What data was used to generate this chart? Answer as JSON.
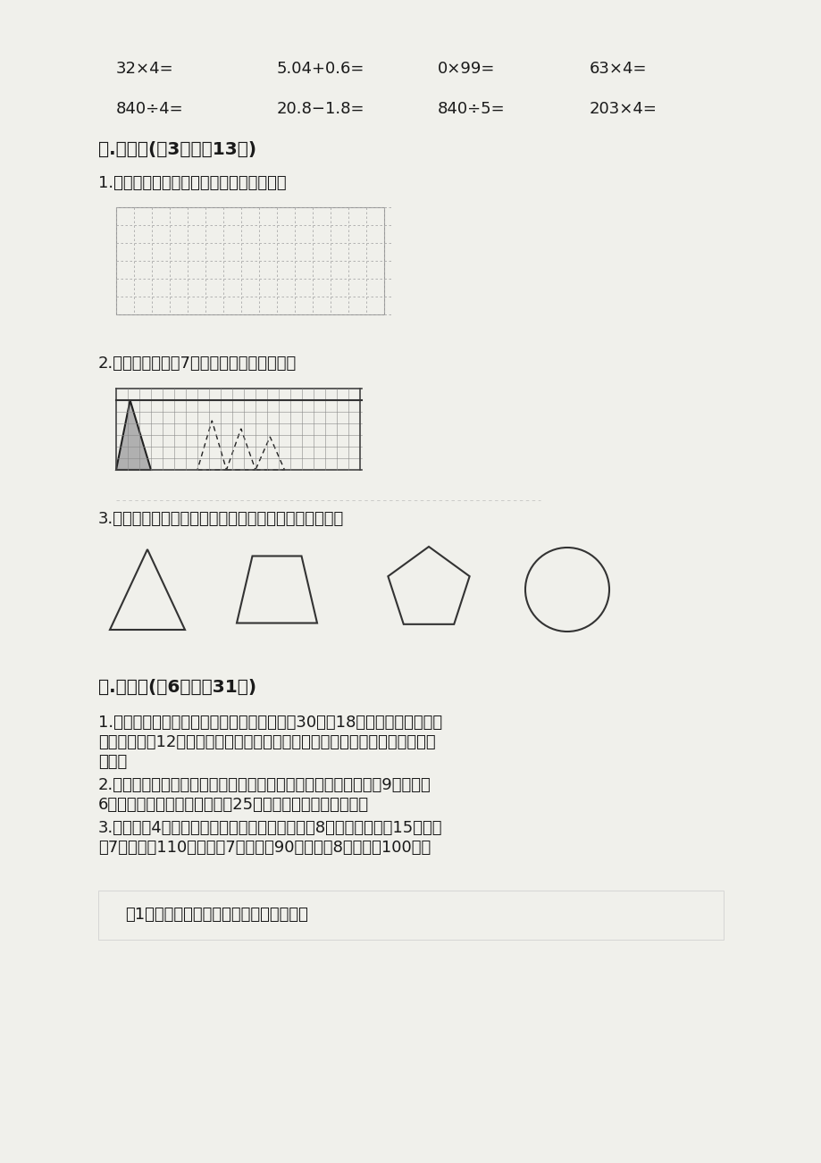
{
  "bg_color": "#f0f0eb",
  "text_color": "#1a1a1a",
  "page_width": 9.2,
  "page_height": 13.02,
  "row1_equations": [
    "32×4=",
    "5.04+0.6=",
    "0×99=",
    "63×4="
  ],
  "row2_equations": [
    "840÷4=",
    "20.8−1.8=",
    "840÷5=",
    "203×4="
  ],
  "section5_title": "五.作图题(共3题，共13分)",
  "q1_text": "1.画一个等腼三角形，其中一个角是锤角。",
  "q2_text": "2.把图形向右平移7格后得的图形涂上颜色。",
  "q3_text": "3.图中的图形都是轴对称图形，请你画出它们的对称轴。",
  "section6_title": "六.解答题(共6题，共31分)",
  "prob1_line1": "1.张星从图书馆借了一本小说书，如果每天看30页，18天可以看完；但图书",
  "prob1_line2": "馆规定时限是12天，要在规定的时间内把这本小说书看完，他平均每天要看多",
  "prob1_line3": "少页？",
  "prob2_line1": "2.老王计划在他的菜园里种上白菜，已知他的菜园为长方形，长为9米，宽为",
  "prob2_line2": "6米，白菜每平方米大概可种植25颗，他可以种多少颗白菜？",
  "prob3_line1": "3.幸福小学4年级一班学生向汝川灾区捐款。一组8人平均每人捐款15元，二",
  "prob3_line2": "组7人共捐款110元，三组7人共捐款90元，四组8人共捐款100元。",
  "subq1_text": "（1）四年级一班平均每个组捐款多少元？"
}
